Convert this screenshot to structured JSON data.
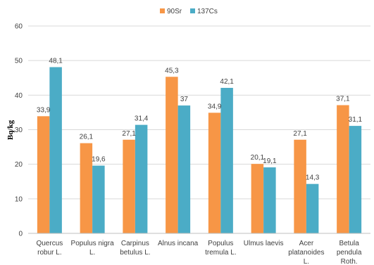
{
  "chart_data": {
    "type": "bar",
    "title": "",
    "xlabel": "",
    "ylabel": "Bq/kg",
    "ylim": [
      0,
      60
    ],
    "yticks": [
      0,
      10,
      20,
      30,
      40,
      50,
      60
    ],
    "grid": true,
    "legend_position": "top-center",
    "categories": [
      [
        "Quercus",
        "robur L."
      ],
      [
        "Populus nigra",
        "L."
      ],
      [
        "Carpinus",
        "betulus L."
      ],
      [
        "Alnus incana"
      ],
      [
        "Populus",
        "tremula L."
      ],
      [
        "Ulmus laevis"
      ],
      [
        "Acer",
        "platanoides",
        "L."
      ],
      [
        "Betula",
        "pendula",
        "Roth."
      ]
    ],
    "series": [
      {
        "name": "90Sr",
        "color": "#f79646",
        "values": [
          33.9,
          26.1,
          27.1,
          45.3,
          34.9,
          20.1,
          27.1,
          37.1
        ],
        "labels": [
          "33,9",
          "26,1",
          "27,1",
          "45,3",
          "34,9",
          "20,1",
          "27,1",
          "37,1"
        ]
      },
      {
        "name": "137Cs",
        "color": "#4bacc6",
        "values": [
          48.1,
          19.6,
          31.4,
          37,
          42.1,
          19.1,
          14.3,
          31.1
        ],
        "labels": [
          "48,1",
          "19,6",
          "31,4",
          "37",
          "42,1",
          "19,1",
          "14,3",
          "31,1"
        ]
      }
    ]
  }
}
